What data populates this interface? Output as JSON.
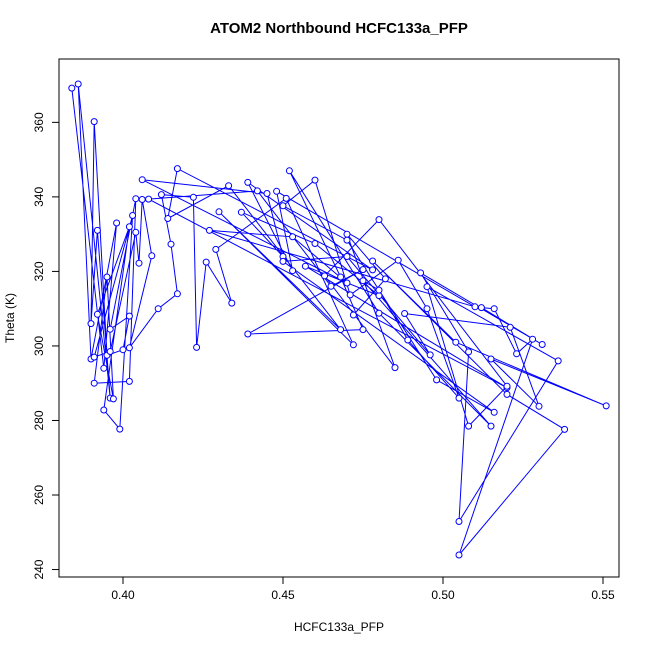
{
  "chart_data": {
    "type": "line",
    "title": "ATOM2 Northbound HCFC133a_PFP",
    "xlabel": "HCFC133a_PFP",
    "ylabel": "Theta (K)",
    "xlim": [
      0.38,
      0.555
    ],
    "ylim": [
      238,
      377
    ],
    "x_ticks": [
      0.4,
      0.45,
      0.5,
      0.55
    ],
    "x_tick_labels": [
      "0.40",
      "0.45",
      "0.50",
      "0.55"
    ],
    "y_ticks": [
      240,
      260,
      280,
      300,
      320,
      340,
      360
    ],
    "y_tick_labels": [
      "240",
      "260",
      "280",
      "300",
      "320",
      "340",
      "360"
    ],
    "line_color": "#0000ff",
    "marker": "open-circle",
    "series": [
      {
        "points": [
          [
            0.384,
            369.2
          ],
          [
            0.394,
            294.0
          ],
          [
            0.398,
            333.0
          ],
          [
            0.39,
            296.5
          ],
          [
            0.386,
            370.3
          ],
          [
            0.396,
            286.0
          ],
          [
            0.392,
            331.0
          ],
          [
            0.39,
            306.0
          ],
          [
            0.391,
            360.2
          ],
          [
            0.395,
            297.5
          ],
          [
            0.4,
            299.0
          ],
          [
            0.402,
            308.0
          ],
          [
            0.396,
            304.5
          ],
          [
            0.404,
            339.5
          ],
          [
            0.402,
            290.5
          ],
          [
            0.391,
            290.0
          ],
          [
            0.395,
            318.5
          ],
          [
            0.397,
            285.8
          ],
          [
            0.392,
            308.5
          ],
          [
            0.402,
            332.0
          ],
          [
            0.394,
            282.8
          ],
          [
            0.399,
            277.7
          ],
          [
            0.403,
            335.0
          ],
          [
            0.391,
            297.0
          ],
          [
            0.396,
            298.5
          ],
          [
            0.404,
            330.5
          ],
          [
            0.405,
            322.2
          ],
          [
            0.406,
            339.3
          ],
          [
            0.409,
            324.2
          ],
          [
            0.402,
            299.5
          ],
          [
            0.411,
            310.0
          ],
          [
            0.417,
            314.0
          ],
          [
            0.415,
            327.3
          ],
          [
            0.412,
            340.6
          ],
          [
            0.422,
            339.9
          ],
          [
            0.423,
            299.6
          ],
          [
            0.426,
            322.5
          ],
          [
            0.434,
            311.5
          ],
          [
            0.429,
            325.9
          ],
          [
            0.451,
            339.6
          ],
          [
            0.472,
            300.3
          ],
          [
            0.43,
            336.0
          ],
          [
            0.468,
            304.4
          ],
          [
            0.433,
            343.0
          ],
          [
            0.414,
            334.2
          ],
          [
            0.417,
            347.6
          ],
          [
            0.478,
            320.4
          ],
          [
            0.439,
            343.9
          ],
          [
            0.453,
            320.2
          ],
          [
            0.448,
            341.5
          ],
          [
            0.51,
            310.5
          ],
          [
            0.427,
            331.0
          ],
          [
            0.453,
            329.3
          ],
          [
            0.47,
            316.9
          ],
          [
            0.406,
            344.6
          ],
          [
            0.445,
            340.9
          ],
          [
            0.45,
            324.0
          ],
          [
            0.437,
            335.9
          ],
          [
            0.46,
            327.5
          ],
          [
            0.48,
            313.5
          ],
          [
            0.457,
            321.4
          ],
          [
            0.52,
            288.8
          ],
          [
            0.408,
            339.4
          ],
          [
            0.442,
            341.6
          ],
          [
            0.465,
            316.0
          ],
          [
            0.475,
            320.5
          ],
          [
            0.439,
            303.2
          ],
          [
            0.475,
            304.4
          ],
          [
            0.468,
            318.5
          ],
          [
            0.452,
            347.0
          ],
          [
            0.48,
            308.8
          ],
          [
            0.515,
            278.5
          ],
          [
            0.475,
            317.5
          ],
          [
            0.48,
            315.0
          ],
          [
            0.489,
            301.6
          ],
          [
            0.505,
            286.0
          ],
          [
            0.495,
            310.0
          ],
          [
            0.486,
            323.0
          ],
          [
            0.471,
            313.7
          ],
          [
            0.46,
            344.5
          ],
          [
            0.45,
            337.6
          ],
          [
            0.47,
            328.4
          ],
          [
            0.498,
            290.9
          ],
          [
            0.516,
            282.2
          ],
          [
            0.45,
            322.7
          ],
          [
            0.47,
            324.0
          ],
          [
            0.496,
            297.6
          ],
          [
            0.488,
            308.7
          ],
          [
            0.521,
            305.0
          ],
          [
            0.53,
            283.8
          ],
          [
            0.515,
            296.5
          ],
          [
            0.551,
            283.9
          ],
          [
            0.504,
            301.0
          ],
          [
            0.478,
            322.8
          ],
          [
            0.52,
            287.0
          ],
          [
            0.538,
            277.6
          ],
          [
            0.505,
            243.9
          ],
          [
            0.528,
            301.8
          ],
          [
            0.523,
            297.9
          ],
          [
            0.516,
            310.0
          ],
          [
            0.512,
            310.3
          ],
          [
            0.531,
            300.4
          ],
          [
            0.493,
            319.6
          ],
          [
            0.508,
            298.4
          ],
          [
            0.505,
            252.9
          ],
          [
            0.536,
            296.0
          ],
          [
            0.495,
            315.9
          ],
          [
            0.508,
            278.5
          ],
          [
            0.52,
            289.2
          ],
          [
            0.48,
            333.9
          ],
          [
            0.463,
            318.8
          ],
          [
            0.485,
            294.2
          ],
          [
            0.47,
            330.0
          ],
          [
            0.482,
            318.0
          ],
          [
            0.472,
            308.3
          ]
        ]
      }
    ]
  }
}
